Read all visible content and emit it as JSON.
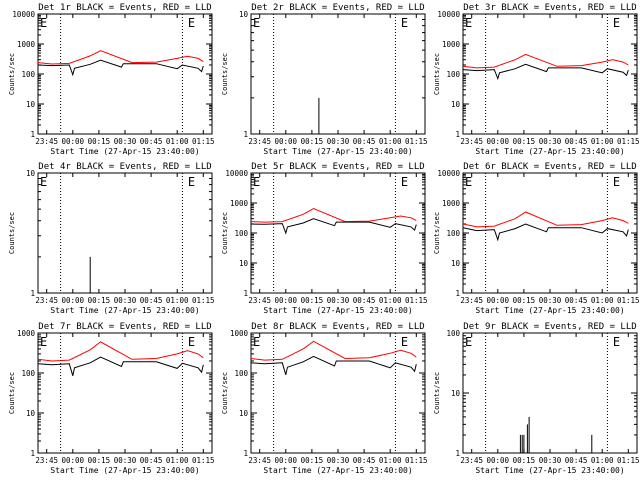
{
  "chart_data": [
    {
      "type": "line",
      "title": "Det 1r BLACK = Events, RED = LLD",
      "xlabel": "Start Time (27-Apr-15 23:40:00)",
      "ylabel": "Counts/sec",
      "x_ticks": [
        "23:45",
        "00:00",
        "00:15",
        "00:30",
        "00:45",
        "01:00",
        "01:15"
      ],
      "y_ticks": [
        "1",
        "10",
        "100",
        "1000",
        "10000"
      ],
      "ylim": [
        1,
        10000
      ],
      "y_scale": "log",
      "markers": [
        {
          "label": "E",
          "x": "23:40"
        },
        {
          "label": "E",
          "x": "01:05"
        }
      ],
      "vlines": [
        "23:53",
        "01:03"
      ],
      "series": [
        {
          "color": "#ff0000",
          "x": [
            "23:40",
            "23:48",
            "23:58",
            "00:10",
            "00:16",
            "00:34",
            "00:48",
            "01:00",
            "01:06",
            "01:12",
            "01:15"
          ],
          "values": [
            240,
            215,
            225,
            400,
            600,
            240,
            250,
            330,
            390,
            330,
            260
          ]
        },
        {
          "color": "#000000",
          "x": [
            "23:40",
            "23:48",
            "23:58",
            "00:00",
            "00:01",
            "00:10",
            "00:16",
            "00:28",
            "00:29",
            "00:34",
            "00:48",
            "01:00",
            "01:03",
            "01:12",
            "01:14",
            "01:15"
          ],
          "values": [
            200,
            190,
            200,
            95,
            155,
            210,
            290,
            170,
            220,
            220,
            220,
            150,
            200,
            155,
            120,
            185
          ]
        }
      ]
    },
    {
      "type": "line",
      "title": "Det 2r BLACK = Events, RED = LLD",
      "xlabel": "Start Time (27-Apr-15 23:40:00)",
      "ylabel": "Counts/sec",
      "x_ticks": [
        "23:45",
        "00:00",
        "00:15",
        "00:30",
        "00:45",
        "01:00",
        "01:15"
      ],
      "y_ticks": [
        "1",
        "10"
      ],
      "ylim": [
        1,
        10
      ],
      "y_scale": "log",
      "markers": [
        {
          "label": "E",
          "x": "23:40"
        },
        {
          "label": "E",
          "x": "01:05"
        }
      ],
      "vlines": [
        "23:53",
        "01:03"
      ],
      "series": [
        {
          "color": "#000000",
          "x": [
            "00:19",
            "00:19",
            "00:19"
          ],
          "values": [
            1,
            2,
            1
          ]
        }
      ]
    },
    {
      "type": "line",
      "title": "Det 3r BLACK = Events, RED = LLD",
      "xlabel": "Start Time (27-Apr-15 23:40:00)",
      "ylabel": "Counts/sec",
      "x_ticks": [
        "23:45",
        "00:00",
        "00:15",
        "00:30",
        "00:45",
        "01:00",
        "01:15"
      ],
      "y_ticks": [
        "1",
        "10",
        "100",
        "1000",
        "10000"
      ],
      "ylim": [
        1,
        10000
      ],
      "y_scale": "log",
      "markers": [
        {
          "label": "E",
          "x": "23:40"
        },
        {
          "label": "E",
          "x": "01:05"
        }
      ],
      "vlines": [
        "23:53",
        "01:03"
      ],
      "series": [
        {
          "color": "#ff0000",
          "x": [
            "23:40",
            "23:48",
            "23:58",
            "00:10",
            "00:16",
            "00:34",
            "00:48",
            "01:00",
            "01:06",
            "01:12",
            "01:15"
          ],
          "values": [
            180,
            160,
            170,
            300,
            450,
            180,
            190,
            250,
            300,
            250,
            200
          ]
        },
        {
          "color": "#000000",
          "x": [
            "23:40",
            "23:48",
            "23:58",
            "00:00",
            "00:01",
            "00:10",
            "00:16",
            "00:28",
            "00:29",
            "00:34",
            "00:48",
            "01:00",
            "01:03",
            "01:12",
            "01:14",
            "01:15"
          ],
          "values": [
            140,
            130,
            140,
            70,
            110,
            150,
            210,
            120,
            160,
            160,
            160,
            110,
            150,
            115,
            90,
            135
          ]
        }
      ]
    },
    {
      "type": "line",
      "title": "Det 4r BLACK = Events, RED = LLD",
      "xlabel": "Start Time (27-Apr-15 23:40:00)",
      "ylabel": "Counts/sec",
      "x_ticks": [
        "23:45",
        "00:00",
        "00:15",
        "00:30",
        "00:45",
        "01:00",
        "01:15"
      ],
      "y_ticks": [
        "1",
        "10"
      ],
      "ylim": [
        1,
        10
      ],
      "y_scale": "log",
      "markers": [
        {
          "label": "E",
          "x": "23:40"
        },
        {
          "label": "E",
          "x": "01:05"
        }
      ],
      "vlines": [
        "23:53",
        "01:03"
      ],
      "series": [
        {
          "color": "#000000",
          "x": [
            "00:10",
            "00:10",
            "00:10"
          ],
          "values": [
            1,
            2,
            1
          ]
        }
      ]
    },
    {
      "type": "line",
      "title": "Det 5r BLACK = Events, RED = LLD",
      "xlabel": "Start Time (27-Apr-15 23:40:00)",
      "ylabel": "Counts/sec",
      "x_ticks": [
        "23:45",
        "00:00",
        "00:15",
        "00:30",
        "00:45",
        "01:00",
        "01:15"
      ],
      "y_ticks": [
        "1",
        "10",
        "100",
        "1000",
        "10000"
      ],
      "ylim": [
        1,
        10000
      ],
      "y_scale": "log",
      "markers": [
        {
          "label": "E",
          "x": "23:40"
        },
        {
          "label": "E",
          "x": "01:05"
        }
      ],
      "vlines": [
        "23:53",
        "01:03"
      ],
      "series": [
        {
          "color": "#ff0000",
          "x": [
            "23:40",
            "23:48",
            "23:58",
            "00:10",
            "00:16",
            "00:34",
            "00:48",
            "01:00",
            "01:06",
            "01:12",
            "01:15"
          ],
          "values": [
            240,
            230,
            240,
            420,
            650,
            240,
            250,
            320,
            370,
            320,
            260
          ]
        },
        {
          "color": "#000000",
          "x": [
            "23:40",
            "23:48",
            "23:58",
            "00:00",
            "00:01",
            "00:10",
            "00:16",
            "00:28",
            "00:29",
            "00:34",
            "00:48",
            "01:00",
            "01:03",
            "01:12",
            "01:14",
            "01:15"
          ],
          "values": [
            200,
            195,
            205,
            100,
            160,
            215,
            300,
            175,
            230,
            230,
            230,
            155,
            205,
            160,
            125,
            190
          ]
        }
      ]
    },
    {
      "type": "line",
      "title": "Det 6r BLACK = Events, RED = LLD",
      "xlabel": "Start Time (27-Apr-15 23:40:00)",
      "ylabel": "Counts/sec",
      "x_ticks": [
        "23:45",
        "00:00",
        "00:15",
        "00:30",
        "00:45",
        "01:00",
        "01:15"
      ],
      "y_ticks": [
        "1",
        "10",
        "100",
        "1000",
        "10000"
      ],
      "ylim": [
        1,
        10000
      ],
      "y_scale": "log",
      "markers": [
        {
          "label": "E",
          "x": "23:40"
        },
        {
          "label": "E",
          "x": "01:05"
        }
      ],
      "vlines": [
        "23:53",
        "01:03"
      ],
      "series": [
        {
          "color": "#ff0000",
          "x": [
            "23:40",
            "23:48",
            "23:58",
            "00:10",
            "00:16",
            "00:34",
            "00:48",
            "01:00",
            "01:06",
            "01:12",
            "01:15"
          ],
          "values": [
            200,
            160,
            170,
            300,
            500,
            180,
            190,
            260,
            320,
            260,
            210
          ]
        },
        {
          "color": "#000000",
          "x": [
            "23:40",
            "23:48",
            "23:58",
            "00:00",
            "00:01",
            "00:10",
            "00:16",
            "00:28",
            "00:29",
            "00:34",
            "00:48",
            "01:00",
            "01:03",
            "01:12",
            "01:14",
            "01:15"
          ],
          "values": [
            150,
            120,
            130,
            60,
            100,
            140,
            200,
            110,
            150,
            150,
            150,
            100,
            140,
            110,
            80,
            130
          ]
        }
      ]
    },
    {
      "type": "line",
      "title": "Det 7r BLACK = Events, RED = LLD",
      "xlabel": "Start Time (27-Apr-15 23:40:00)",
      "ylabel": "Counts/sec",
      "x_ticks": [
        "23:45",
        "00:00",
        "00:15",
        "00:30",
        "00:45",
        "01:00",
        "01:15"
      ],
      "y_ticks": [
        "1",
        "10",
        "100",
        "1000"
      ],
      "ylim": [
        1,
        1000
      ],
      "y_scale": "log",
      "markers": [
        {
          "label": "E",
          "x": "23:40"
        },
        {
          "label": "E",
          "x": "01:05"
        }
      ],
      "vlines": [
        "23:53",
        "01:03"
      ],
      "series": [
        {
          "color": "#ff0000",
          "x": [
            "23:40",
            "23:48",
            "23:58",
            "00:10",
            "00:16",
            "00:34",
            "00:48",
            "01:00",
            "01:06",
            "01:12",
            "01:15"
          ],
          "values": [
            220,
            200,
            210,
            380,
            600,
            220,
            230,
            300,
            360,
            300,
            240
          ]
        },
        {
          "color": "#000000",
          "x": [
            "23:40",
            "23:48",
            "23:58",
            "00:00",
            "00:01",
            "00:10",
            "00:16",
            "00:28",
            "00:29",
            "00:34",
            "00:48",
            "01:00",
            "01:03",
            "01:12",
            "01:14",
            "01:15"
          ],
          "values": [
            170,
            160,
            170,
            85,
            135,
            180,
            250,
            145,
            190,
            190,
            190,
            130,
            175,
            135,
            105,
            160
          ]
        }
      ]
    },
    {
      "type": "line",
      "title": "Det 8r BLACK = Events, RED = LLD",
      "xlabel": "Start Time (27-Apr-15 23:40:00)",
      "ylabel": "Counts/sec",
      "x_ticks": [
        "23:45",
        "00:00",
        "00:15",
        "00:30",
        "00:45",
        "01:00",
        "01:15"
      ],
      "y_ticks": [
        "1",
        "10",
        "100",
        "1000"
      ],
      "ylim": [
        1,
        1000
      ],
      "y_scale": "log",
      "markers": [
        {
          "label": "E",
          "x": "23:40"
        },
        {
          "label": "E",
          "x": "01:05"
        }
      ],
      "vlines": [
        "23:53",
        "01:03"
      ],
      "series": [
        {
          "color": "#ff0000",
          "x": [
            "23:40",
            "23:48",
            "23:58",
            "00:10",
            "00:16",
            "00:34",
            "00:48",
            "01:00",
            "01:06",
            "01:12",
            "01:15"
          ],
          "values": [
            230,
            210,
            220,
            400,
            620,
            230,
            240,
            310,
            370,
            310,
            250
          ]
        },
        {
          "color": "#000000",
          "x": [
            "23:40",
            "23:48",
            "23:58",
            "00:00",
            "00:01",
            "00:10",
            "00:16",
            "00:28",
            "00:29",
            "00:34",
            "00:48",
            "01:00",
            "01:03",
            "01:12",
            "01:14",
            "01:15"
          ],
          "values": [
            180,
            170,
            180,
            90,
            140,
            190,
            260,
            150,
            200,
            200,
            200,
            135,
            180,
            140,
            110,
            165
          ]
        }
      ]
    },
    {
      "type": "line",
      "title": "Det 9r BLACK = Events, RED = LLD",
      "xlabel": "Start Time (27-Apr-15 23:40:00)",
      "ylabel": "Counts/sec",
      "x_ticks": [
        "23:45",
        "00:00",
        "00:15",
        "00:30",
        "00:45",
        "01:00",
        "01:15"
      ],
      "y_ticks": [
        "1",
        "10",
        "100"
      ],
      "ylim": [
        1,
        100
      ],
      "y_scale": "log",
      "markers": [
        {
          "label": "E",
          "x": "23:40"
        },
        {
          "label": "E",
          "x": "01:05"
        }
      ],
      "vlines": [
        "23:53",
        "01:03"
      ],
      "series": [
        {
          "color": "#000000",
          "x": [
            "00:13",
            "00:13",
            "00:13",
            "00:14",
            "00:14",
            "00:14",
            "00:15",
            "00:15",
            "00:15",
            "00:17",
            "00:17",
            "00:17",
            "00:18",
            "00:18",
            "00:18",
            "00:54",
            "00:54",
            "00:54"
          ],
          "values": [
            1,
            2,
            1,
            1,
            2,
            1,
            1,
            2,
            1,
            1,
            3,
            1,
            1,
            4,
            1,
            1,
            2,
            1
          ]
        }
      ]
    }
  ]
}
